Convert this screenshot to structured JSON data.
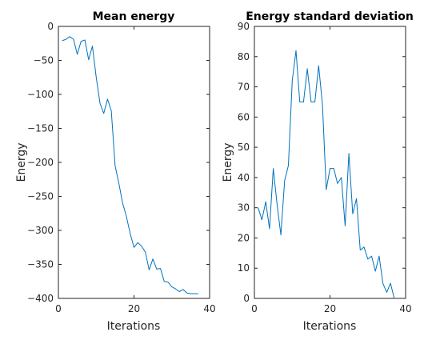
{
  "colors": {
    "series": "#0072bd",
    "axis": "#262626",
    "background": "#ffffff"
  },
  "chart_data": [
    {
      "type": "line",
      "title": "Mean energy",
      "xlabel": "Iterations",
      "ylabel": "Energy",
      "xlim": [
        0,
        40
      ],
      "ylim": [
        -400,
        0
      ],
      "xticks": [
        0,
        20,
        40
      ],
      "yticks": [
        0,
        -50,
        -100,
        -150,
        -200,
        -250,
        -300,
        -350,
        -400
      ],
      "grid": false,
      "legend": "none",
      "series": [
        {
          "x": [
            1,
            2,
            3,
            4,
            5,
            6,
            7,
            8,
            9,
            10,
            11,
            12,
            13,
            14,
            15,
            16,
            17,
            18,
            19,
            20,
            21,
            22,
            23,
            24,
            25,
            26,
            27,
            28,
            29,
            30,
            31,
            32,
            33,
            34,
            35,
            36,
            37
          ],
          "y": [
            -21,
            -19,
            -15,
            -19,
            -41,
            -22,
            -20,
            -49,
            -29,
            -75,
            -113,
            -128,
            -107,
            -124,
            -205,
            -231,
            -260,
            -280,
            -305,
            -325,
            -318,
            -323,
            -332,
            -358,
            -342,
            -357,
            -356,
            -375,
            -376,
            -383,
            -386,
            -390,
            -387,
            -392,
            -393,
            -393,
            -393
          ]
        }
      ]
    },
    {
      "type": "line",
      "title": "Energy standard deviation",
      "xlabel": "Iterations",
      "ylabel": "Energy",
      "xlim": [
        0,
        40
      ],
      "ylim": [
        0,
        90
      ],
      "xticks": [
        0,
        20,
        40
      ],
      "yticks": [
        0,
        10,
        20,
        30,
        40,
        50,
        60,
        70,
        80,
        90
      ],
      "grid": false,
      "legend": "none",
      "series": [
        {
          "x": [
            1,
            2,
            3,
            4,
            5,
            6,
            7,
            8,
            9,
            10,
            11,
            12,
            13,
            14,
            15,
            16,
            17,
            18,
            19,
            20,
            21,
            22,
            23,
            24,
            25,
            26,
            27,
            28,
            29,
            30,
            31,
            32,
            33,
            34,
            35,
            36,
            37
          ],
          "y": [
            30,
            26,
            32,
            23,
            43,
            31,
            21,
            39,
            44,
            72,
            82,
            65,
            65,
            76,
            65,
            65,
            77,
            64,
            36,
            43,
            43,
            38,
            40,
            24,
            48,
            28,
            33,
            16,
            17,
            13,
            14,
            9,
            14,
            5,
            2,
            5,
            0
          ]
        }
      ]
    }
  ]
}
